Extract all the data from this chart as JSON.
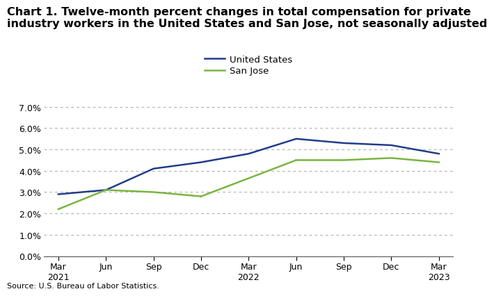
{
  "title_line1": "Chart 1. Twelve-month percent changes in total compensation for private",
  "title_line2": "industry workers in the United States and San Jose, not seasonally adjusted",
  "source": "Source: U.S. Bureau of Labor Statistics.",
  "x_labels": [
    "Mar\n2021",
    "Jun",
    "Sep",
    "Dec",
    "Mar\n2022",
    "Jun",
    "Sep",
    "Dec",
    "Mar\n2023"
  ],
  "us_values": [
    2.9,
    3.1,
    4.1,
    4.4,
    4.8,
    5.5,
    5.3,
    5.2,
    4.8
  ],
  "sj_values": [
    2.2,
    3.1,
    3.0,
    2.8,
    null,
    4.5,
    4.5,
    4.6,
    4.4
  ],
  "us_color": "#1f3d8c",
  "sj_color": "#7ab540",
  "legend_us": "United States",
  "legend_sj": "San Jose",
  "ylim": [
    0.0,
    7.0
  ],
  "yticks": [
    0.0,
    1.0,
    2.0,
    3.0,
    4.0,
    5.0,
    6.0,
    7.0
  ],
  "background_color": "#ffffff",
  "grid_color": "#aaaaaa",
  "title_fontsize": 11.5,
  "tick_fontsize": 9,
  "legend_fontsize": 9.5,
  "source_fontsize": 8
}
